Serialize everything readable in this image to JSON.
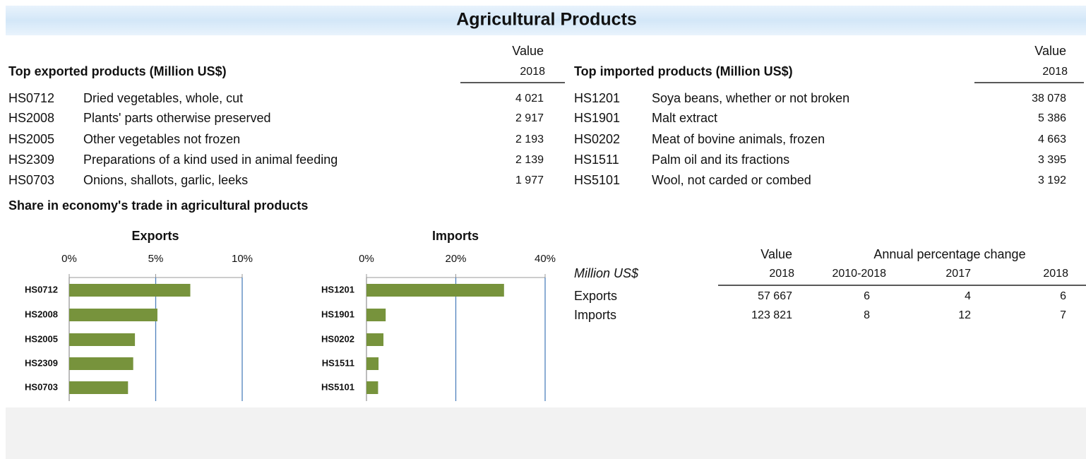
{
  "header": {
    "title": "Agricultural Products"
  },
  "exports_table": {
    "title": "Top exported products (Million US$)",
    "value_header": "Value",
    "year": "2018",
    "rows": [
      [
        "HS0712",
        "Dried vegetables, whole, cut",
        "4 021"
      ],
      [
        "HS2008",
        "Plants' parts otherwise preserved",
        "2 917"
      ],
      [
        "HS2005",
        "Other vegetables not frozen",
        "2 193"
      ],
      [
        "HS2309",
        "Preparations of a kind used in animal feeding",
        "2 139"
      ],
      [
        "HS0703",
        "Onions, shallots, garlic, leeks",
        "1 977"
      ]
    ]
  },
  "imports_table": {
    "title": "Top imported products (Million US$)",
    "value_header": "Value",
    "year": "2018",
    "rows": [
      [
        "HS1201",
        "Soya beans, whether or not broken",
        "38 078"
      ],
      [
        "HS1901",
        "Malt extract",
        "5 386"
      ],
      [
        "HS0202",
        "Meat of bovine animals, frozen",
        "4 663"
      ],
      [
        "HS1511",
        "Palm oil and its fractions",
        "3 395"
      ],
      [
        "HS5101",
        "Wool, not carded or combed",
        "3 192"
      ]
    ]
  },
  "share_title": "Share in economy's trade in agricultural products",
  "chart_data": [
    {
      "type": "bar",
      "title": "Exports",
      "categories": [
        "HS0712",
        "HS2008",
        "HS2005",
        "HS2309",
        "HS0703"
      ],
      "values": [
        7.0,
        5.1,
        3.8,
        3.7,
        3.4
      ],
      "color": "#77933c",
      "xlim": [
        0,
        10
      ],
      "xticks": [
        {
          "value": 0,
          "label": "0%"
        },
        {
          "value": 5,
          "label": "5%"
        },
        {
          "value": 10,
          "label": "10%"
        }
      ],
      "grid": true
    },
    {
      "type": "bar",
      "title": "Imports",
      "categories": [
        "HS1201",
        "HS1901",
        "HS0202",
        "HS1511",
        "HS5101"
      ],
      "values": [
        30.8,
        4.3,
        3.8,
        2.7,
        2.6
      ],
      "color": "#77933c",
      "xlim": [
        0,
        40
      ],
      "xticks": [
        {
          "value": 0,
          "label": "0%"
        },
        {
          "value": 20,
          "label": "20%"
        },
        {
          "value": 40,
          "label": "40%"
        }
      ],
      "grid": true
    }
  ],
  "summary": {
    "unit": "Million US$",
    "value_header": "Value",
    "change_header": "Annual percentage change",
    "columns": [
      "2018",
      "2010-2018",
      "2017",
      "2018"
    ],
    "rows": [
      [
        "Exports",
        "57 667",
        "6",
        "4",
        "6"
      ],
      [
        "Imports",
        "123 821",
        "8",
        "12",
        "7"
      ]
    ]
  }
}
